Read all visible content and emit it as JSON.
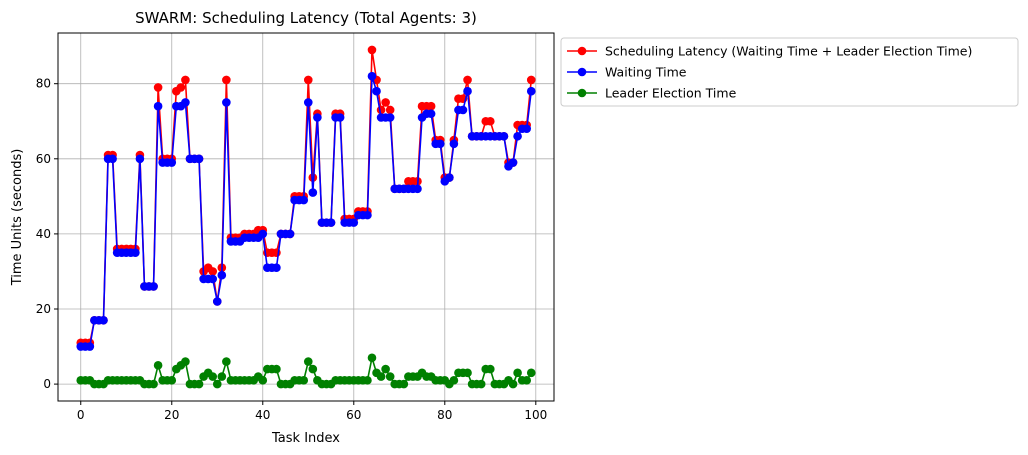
{
  "chart_data": {
    "type": "line",
    "title": "SWARM: Scheduling Latency (Total Agents: 3)",
    "xlabel": "Task Index",
    "ylabel": "Time Units (seconds)",
    "xlim": [
      -5,
      104
    ],
    "ylim": [
      -4.5,
      93.5
    ],
    "xticks": [
      "0",
      "20",
      "40",
      "60",
      "80",
      "100"
    ],
    "yticks": [
      "0",
      "20",
      "40",
      "60",
      "80"
    ],
    "grid": true,
    "legend_position": "outside-upper-right",
    "x": [
      0,
      1,
      2,
      3,
      4,
      5,
      6,
      7,
      8,
      9,
      10,
      11,
      12,
      13,
      14,
      15,
      16,
      17,
      18,
      19,
      20,
      21,
      22,
      23,
      24,
      25,
      26,
      27,
      28,
      29,
      30,
      31,
      32,
      33,
      34,
      35,
      36,
      37,
      38,
      39,
      40,
      41,
      42,
      43,
      44,
      45,
      46,
      47,
      48,
      49,
      50,
      51,
      52,
      53,
      54,
      55,
      56,
      57,
      58,
      59,
      60,
      61,
      62,
      63,
      64,
      65,
      66,
      67,
      68,
      69,
      70,
      71,
      72,
      73,
      74,
      75,
      76,
      77,
      78,
      79,
      80,
      81,
      82,
      83,
      84,
      85,
      86,
      87,
      88,
      89,
      90,
      91,
      92,
      93,
      94,
      95,
      96,
      97,
      98,
      99
    ],
    "series": [
      {
        "name": "Scheduling Latency (Waiting Time + Leader Election Time)",
        "color": "#ff0000",
        "values": [
          11,
          11,
          11,
          17,
          17,
          17,
          61,
          61,
          36,
          36,
          36,
          36,
          36,
          61,
          26,
          26,
          26,
          79,
          60,
          60,
          60,
          78,
          79,
          81,
          60,
          60,
          60,
          30,
          31,
          30,
          22,
          31,
          81,
          39,
          39,
          39,
          40,
          40,
          40,
          41,
          41,
          35,
          35,
          35,
          40,
          40,
          40,
          50,
          50,
          50,
          81,
          55,
          72,
          43,
          43,
          43,
          72,
          72,
          44,
          44,
          44,
          46,
          46,
          46,
          89,
          81,
          73,
          75,
          73,
          52,
          52,
          52,
          54,
          54,
          54,
          74,
          74,
          74,
          65,
          65,
          55,
          55,
          65,
          76,
          76,
          81,
          66,
          66,
          66,
          70,
          70,
          66,
          66,
          66,
          59,
          59,
          69,
          69,
          69,
          81
        ]
      },
      {
        "name": "Waiting Time",
        "color": "#0000ff",
        "values": [
          10,
          10,
          10,
          17,
          17,
          17,
          60,
          60,
          35,
          35,
          35,
          35,
          35,
          60,
          26,
          26,
          26,
          74,
          59,
          59,
          59,
          74,
          74,
          75,
          60,
          60,
          60,
          28,
          28,
          28,
          22,
          29,
          75,
          38,
          38,
          38,
          39,
          39,
          39,
          39,
          40,
          31,
          31,
          31,
          40,
          40,
          40,
          49,
          49,
          49,
          75,
          51,
          71,
          43,
          43,
          43,
          71,
          71,
          43,
          43,
          43,
          45,
          45,
          45,
          82,
          78,
          71,
          71,
          71,
          52,
          52,
          52,
          52,
          52,
          52,
          71,
          72,
          72,
          64,
          64,
          54,
          55,
          64,
          73,
          73,
          78,
          66,
          66,
          66,
          66,
          66,
          66,
          66,
          66,
          58,
          59,
          66,
          68,
          68,
          78
        ]
      },
      {
        "name": "Leader Election Time",
        "color": "#008000",
        "values": [
          1,
          1,
          1,
          0,
          0,
          0,
          1,
          1,
          1,
          1,
          1,
          1,
          1,
          1,
          0,
          0,
          0,
          5,
          1,
          1,
          1,
          4,
          5,
          6,
          0,
          0,
          0,
          2,
          3,
          2,
          0,
          2,
          6,
          1,
          1,
          1,
          1,
          1,
          1,
          2,
          1,
          4,
          4,
          4,
          0,
          0,
          0,
          1,
          1,
          1,
          6,
          4,
          1,
          0,
          0,
          0,
          1,
          1,
          1,
          1,
          1,
          1,
          1,
          1,
          7,
          3,
          2,
          4,
          2,
          0,
          0,
          0,
          2,
          2,
          2,
          3,
          2,
          2,
          1,
          1,
          1,
          0,
          1,
          3,
          3,
          3,
          0,
          0,
          0,
          4,
          4,
          0,
          0,
          0,
          1,
          0,
          3,
          1,
          1,
          3
        ]
      }
    ]
  }
}
